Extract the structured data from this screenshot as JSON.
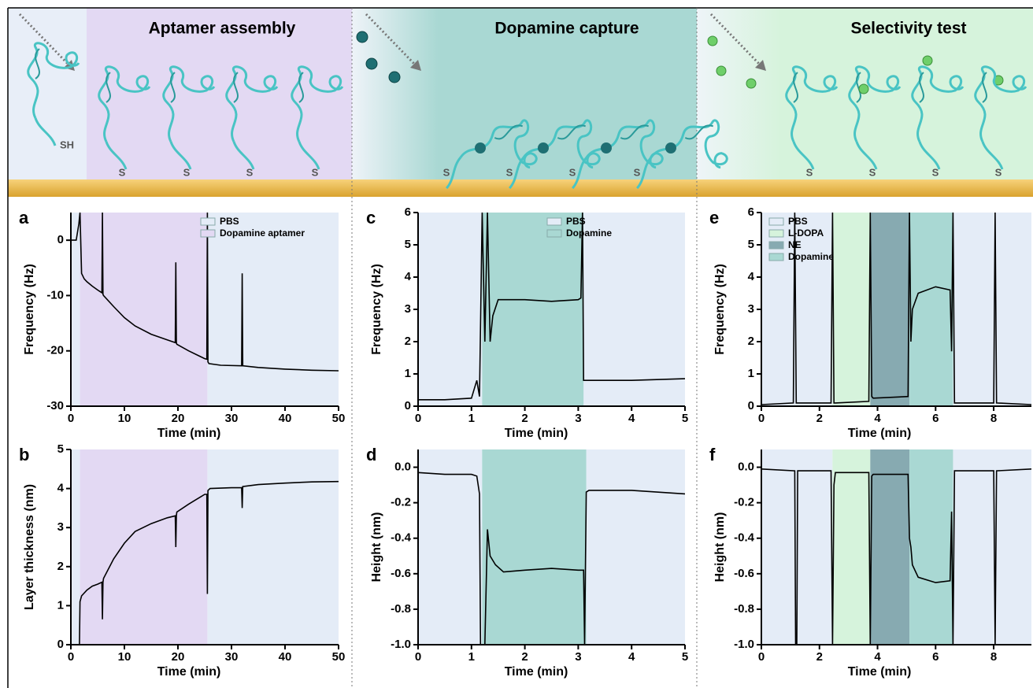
{
  "sections": [
    "Aptamer assembly",
    "Dopamine capture",
    "Selectivity test"
  ],
  "illustration_labels": {
    "thiol": "SH",
    "sulfur": "S"
  },
  "chart_data": [
    {
      "type": "line",
      "panel_label": "a",
      "xlabel": "Time (min)",
      "ylabel": "Frequency (Hz)",
      "xlim": [
        0,
        50
      ],
      "xticks": [
        0,
        10,
        20,
        30,
        40,
        50
      ],
      "ylim": [
        -30,
        5
      ],
      "yticks": [
        -30,
        -20,
        -10,
        0
      ],
      "legend_loc": "upper right",
      "regions": [
        {
          "name": "PBS",
          "color": "#e4ecf7",
          "spans": [
            [
              0,
              1.7
            ],
            [
              25.5,
              50
            ]
          ]
        },
        {
          "name": "Dopamine aptamer",
          "color": "#e3d9f3",
          "spans": [
            [
              1.7,
              25.5
            ]
          ]
        }
      ],
      "x": [
        0,
        1,
        1.5,
        1.7,
        2,
        2.5,
        3,
        4,
        5,
        5.8,
        5.9,
        6,
        6.1,
        8,
        10,
        12,
        15,
        18,
        19.5,
        19.6,
        19.7,
        19.8,
        22,
        25,
        25.4,
        25.5,
        25.6,
        25.8,
        28,
        31.9,
        32,
        32.1,
        35,
        40,
        45,
        50
      ],
      "series": [
        {
          "color": "#000000",
          "values": [
            0,
            0,
            3,
            5,
            -6,
            -7,
            -7.5,
            -8.3,
            -9,
            -9.5,
            5,
            -9.8,
            -10,
            -12,
            -14,
            -15.5,
            -17,
            -18,
            -18.5,
            -4,
            -18.5,
            -18.8,
            -20,
            -21.4,
            -21.5,
            5,
            -22,
            -22.3,
            -22.6,
            -22.7,
            -6,
            -22.7,
            -23,
            -23.3,
            -23.5,
            -23.6
          ]
        }
      ]
    },
    {
      "type": "line",
      "panel_label": "b",
      "xlabel": "Time (min)",
      "ylabel": "Layer thickness (nm)",
      "xlim": [
        0,
        50
      ],
      "xticks": [
        0,
        10,
        20,
        30,
        40,
        50
      ],
      "ylim": [
        0,
        5
      ],
      "yticks": [
        0,
        1,
        2,
        3,
        4,
        5
      ],
      "regions": [
        {
          "name": "PBS",
          "color": "#e4ecf7",
          "spans": [
            [
              0,
              1.7
            ],
            [
              25.5,
              50
            ]
          ]
        },
        {
          "name": "Dopamine aptamer",
          "color": "#e3d9f3",
          "spans": [
            [
              1.7,
              25.5
            ]
          ]
        }
      ],
      "x": [
        1.6,
        1.7,
        2,
        3,
        4,
        5,
        5.8,
        5.9,
        6,
        6.1,
        8,
        10,
        12,
        15,
        18,
        19.5,
        19.6,
        19.7,
        19.8,
        22,
        25,
        25.4,
        25.5,
        25.6,
        26,
        30,
        31.9,
        32,
        32.1,
        35,
        40,
        45,
        50
      ],
      "series": [
        {
          "color": "#000000",
          "values": [
            0,
            1.1,
            1.25,
            1.4,
            1.5,
            1.55,
            1.6,
            0.65,
            1.6,
            1.7,
            2.2,
            2.6,
            2.9,
            3.1,
            3.25,
            3.3,
            2.5,
            3.3,
            3.4,
            3.6,
            3.85,
            3.85,
            1.3,
            3.95,
            4.0,
            4.02,
            4.02,
            3.5,
            4.05,
            4.1,
            4.14,
            4.17,
            4.18
          ]
        }
      ]
    },
    {
      "type": "line",
      "panel_label": "c",
      "xlabel": "Time (min)",
      "ylabel": "Frequency (Hz)",
      "xlim": [
        0,
        5
      ],
      "xticks": [
        0,
        1,
        2,
        3,
        4,
        5
      ],
      "ylim": [
        0,
        6
      ],
      "yticks": [
        0,
        1,
        2,
        3,
        4,
        5,
        6
      ],
      "legend_loc": "upper right",
      "regions": [
        {
          "name": "PBS",
          "color": "#e4ecf7",
          "spans": [
            [
              0,
              1.2
            ],
            [
              3.1,
              5
            ]
          ]
        },
        {
          "name": "Dopamine",
          "color": "#a9d8d3",
          "spans": [
            [
              1.2,
              3.1
            ]
          ]
        }
      ],
      "x": [
        0,
        0.5,
        1.0,
        1.1,
        1.15,
        1.2,
        1.25,
        1.3,
        1.35,
        1.4,
        1.5,
        2,
        2.5,
        3,
        3.05,
        3.08,
        3.1,
        3.2,
        4,
        5
      ],
      "series": [
        {
          "color": "#000000",
          "values": [
            0.2,
            0.2,
            0.25,
            0.8,
            0.3,
            6,
            2,
            6,
            2,
            2.8,
            3.3,
            3.3,
            3.25,
            3.3,
            3.35,
            6,
            0.8,
            0.8,
            0.8,
            0.85
          ]
        }
      ]
    },
    {
      "type": "line",
      "panel_label": "d",
      "xlabel": "Time (min)",
      "ylabel": "Height (nm)",
      "xlim": [
        0,
        5
      ],
      "xticks": [
        0,
        1,
        2,
        3,
        4,
        5
      ],
      "ylim": [
        -1,
        0.1
      ],
      "yticks": [
        {
          "value": -1,
          "label": "-1.0"
        },
        -0.8,
        -0.6,
        -0.4,
        -0.2,
        {
          "value": 0,
          "label": "0.0"
        }
      ],
      "regions": [
        {
          "name": "PBS",
          "color": "#e4ecf7",
          "spans": [
            [
              0,
              1.2
            ],
            [
              3.15,
              5
            ]
          ]
        },
        {
          "name": "Dopamine",
          "color": "#a9d8d3",
          "spans": [
            [
              1.2,
              3.15
            ]
          ]
        }
      ],
      "x": [
        0,
        0.5,
        1,
        1.1,
        1.15,
        1.17,
        1.25,
        1.3,
        1.35,
        1.45,
        1.6,
        2,
        2.5,
        3,
        3.1,
        3.12,
        3.15,
        3.2,
        4,
        5
      ],
      "series": [
        {
          "color": "#000000",
          "values": [
            -0.03,
            -0.04,
            -0.04,
            -0.05,
            -0.15,
            -1,
            -1,
            -0.35,
            -0.5,
            -0.55,
            -0.59,
            -0.58,
            -0.57,
            -0.58,
            -0.58,
            -1,
            -0.14,
            -0.13,
            -0.13,
            -0.15
          ]
        }
      ]
    },
    {
      "type": "line",
      "panel_label": "e",
      "xlabel": "Time (min)",
      "ylabel": "Frequency (Hz)",
      "xlim": [
        0,
        9.3
      ],
      "xticks": [
        0,
        2,
        4,
        6,
        8
      ],
      "ylim": [
        0,
        6
      ],
      "yticks": [
        0,
        1,
        2,
        3,
        4,
        5,
        6
      ],
      "legend_loc": "upper left",
      "regions": [
        {
          "name": "PBS",
          "color": "#e4ecf7",
          "spans": [
            [
              0,
              2.45
            ],
            [
              6.6,
              9.3
            ]
          ]
        },
        {
          "name": "L-DOPA",
          "color": "#d6f3dc",
          "spans": [
            [
              2.45,
              3.75
            ]
          ]
        },
        {
          "name": "NE",
          "color": "#87aab1",
          "spans": [
            [
              3.75,
              5.1
            ]
          ]
        },
        {
          "name": "Dopamine",
          "color": "#a9d8d3",
          "spans": [
            [
              5.1,
              6.6
            ]
          ]
        }
      ],
      "x": [
        0,
        1.1,
        1.15,
        1.2,
        1.25,
        2.4,
        2.45,
        2.5,
        2.55,
        3.7,
        3.75,
        3.8,
        3.85,
        5.05,
        5.1,
        5.15,
        5.2,
        5.4,
        6,
        6.5,
        6.55,
        6.6,
        6.65,
        8,
        8.05,
        8.1,
        9.3
      ],
      "series": [
        {
          "color": "#000000",
          "values": [
            0.05,
            0.1,
            6,
            0.1,
            0.1,
            0.1,
            6,
            0.1,
            0.1,
            0.15,
            6,
            0.3,
            0.25,
            0.3,
            6,
            2,
            3.0,
            3.5,
            3.7,
            3.6,
            1.7,
            6,
            0.1,
            0.1,
            6,
            0.1,
            0.05
          ]
        }
      ]
    },
    {
      "type": "line",
      "panel_label": "f",
      "xlabel": "Time (min)",
      "ylabel": "Height (nm)",
      "xlim": [
        0,
        9.3
      ],
      "xticks": [
        0,
        2,
        4,
        6,
        8
      ],
      "ylim": [
        -1,
        0.1
      ],
      "yticks": [
        {
          "value": -1,
          "label": "-1.0"
        },
        -0.8,
        -0.6,
        -0.4,
        -0.2,
        {
          "value": 0,
          "label": "0.0"
        }
      ],
      "regions": [
        {
          "name": "PBS",
          "color": "#e4ecf7",
          "spans": [
            [
              0,
              2.45
            ],
            [
              6.6,
              9.3
            ]
          ]
        },
        {
          "name": "L-DOPA",
          "color": "#d6f3dc",
          "spans": [
            [
              2.45,
              3.75
            ]
          ]
        },
        {
          "name": "NE",
          "color": "#87aab1",
          "spans": [
            [
              3.75,
              5.1
            ]
          ]
        },
        {
          "name": "Dopamine",
          "color": "#a9d8d3",
          "spans": [
            [
              5.1,
              6.6
            ]
          ]
        }
      ],
      "x": [
        0,
        1.15,
        1.18,
        1.22,
        1.25,
        2.4,
        2.45,
        2.5,
        2.55,
        3.7,
        3.75,
        3.8,
        3.85,
        5.05,
        5.1,
        5.15,
        5.2,
        5.4,
        6,
        6.5,
        6.55,
        6.6,
        6.65,
        8,
        8.05,
        8.1,
        9.3
      ],
      "series": [
        {
          "color": "#000000",
          "values": [
            -0.01,
            -0.02,
            -1,
            -1,
            -0.02,
            -0.02,
            -1,
            -0.1,
            -0.03,
            -0.03,
            -1,
            -0.05,
            -0.04,
            -0.04,
            -0.4,
            -0.45,
            -0.55,
            -0.62,
            -0.65,
            -0.64,
            -0.25,
            -1,
            -0.02,
            -0.02,
            -1,
            -0.02,
            -0.01
          ]
        }
      ]
    }
  ]
}
